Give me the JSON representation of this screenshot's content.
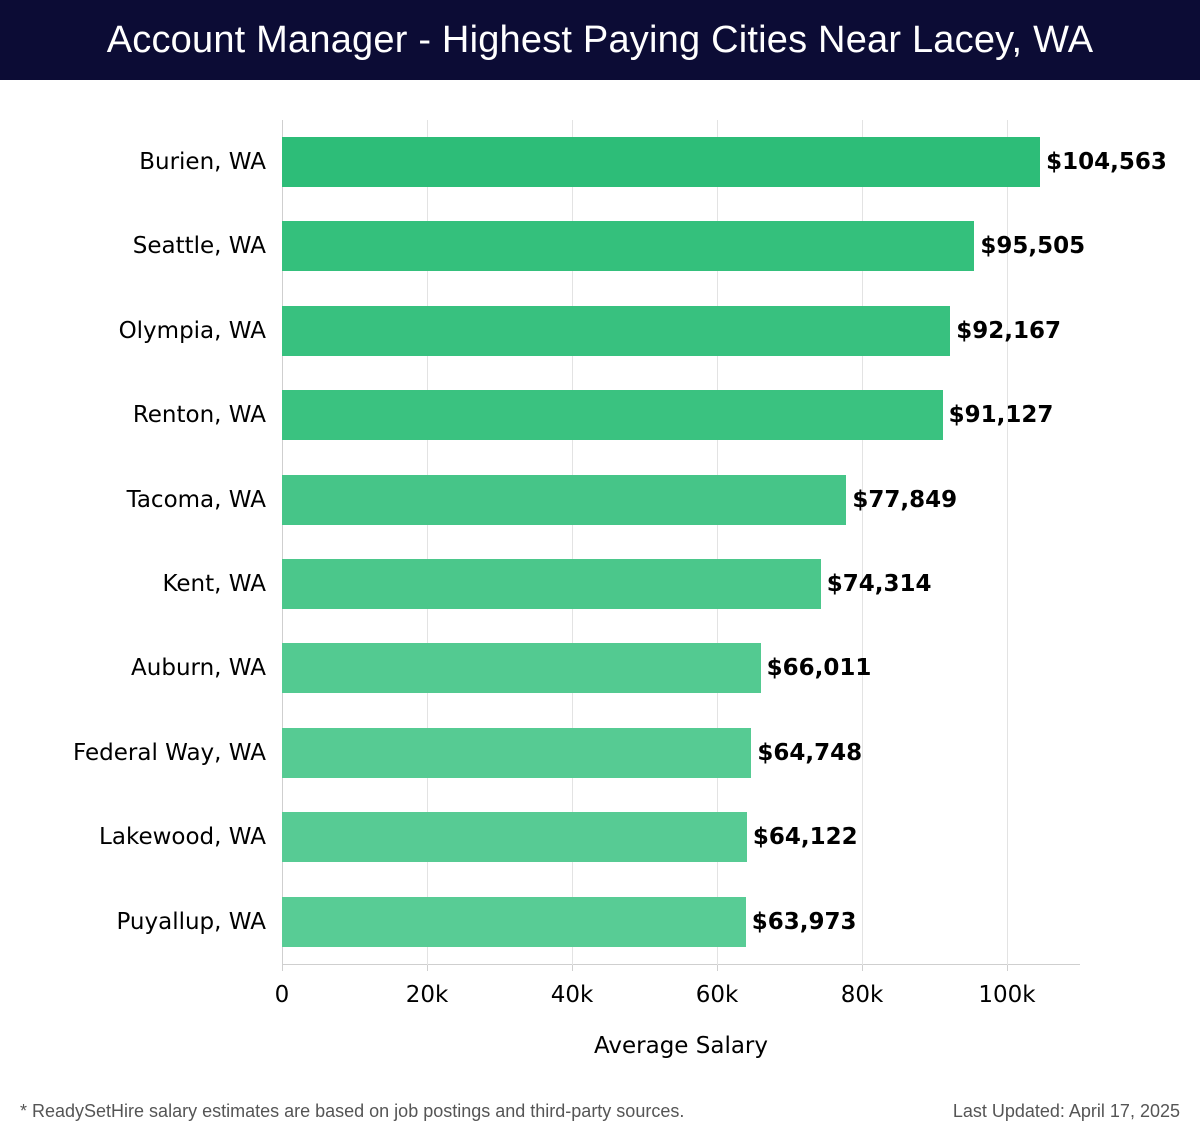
{
  "header": {
    "title": "Account Manager - Highest Paying Cities Near Lacey, WA"
  },
  "chart_data": {
    "type": "bar",
    "orientation": "horizontal",
    "title": "Account Manager - Highest Paying Cities Near Lacey, WA",
    "xlabel": "Average Salary",
    "ylabel": "",
    "xlim": [
      0,
      110000
    ],
    "grid": true,
    "x_ticks": [
      "0",
      "20k",
      "40k",
      "60k",
      "80k",
      "100k"
    ],
    "x_tick_values": [
      0,
      20000,
      40000,
      60000,
      80000,
      100000
    ],
    "categories": [
      "Burien, WA",
      "Seattle, WA",
      "Olympia, WA",
      "Renton, WA",
      "Tacoma, WA",
      "Kent, WA",
      "Auburn, WA",
      "Federal Way, WA",
      "Lakewood, WA",
      "Puyallup, WA"
    ],
    "values": [
      104563,
      95505,
      92167,
      91127,
      77849,
      74314,
      66011,
      64748,
      64122,
      63973
    ],
    "value_labels": [
      "$104,563",
      "$95,505",
      "$92,167",
      "$91,127",
      "$77,849",
      "$74,314",
      "$66,011",
      "$64,748",
      "$64,122",
      "$63,973"
    ],
    "colors": [
      "#2dbd78",
      "#34c07c",
      "#38c17f",
      "#3ac280",
      "#46c588",
      "#4bc78b",
      "#53ca91",
      "#56cb93",
      "#57cb94",
      "#58cc95"
    ]
  },
  "footer": {
    "footnote": "* ReadySetHire salary estimates are based on job postings and third-party sources.",
    "last_updated": "Last Updated: April 17, 2025"
  }
}
